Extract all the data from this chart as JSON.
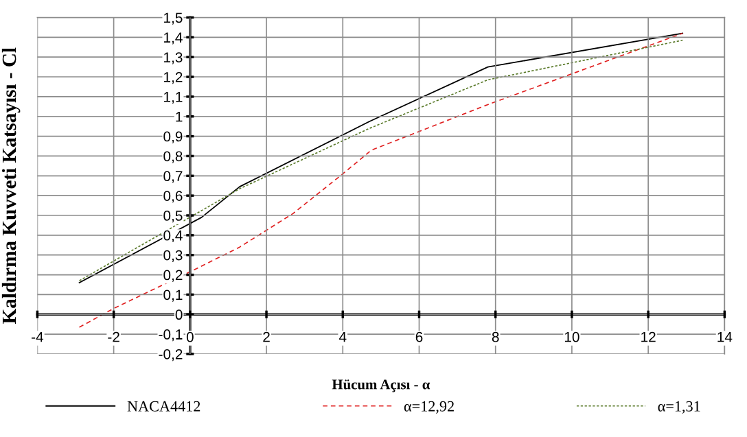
{
  "chart_data": {
    "type": "line",
    "xlabel": "Hücum Açısı - α",
    "ylabel": "Kaldırma Kuvveti Katsayısı - Cl",
    "xlim": [
      -4,
      14
    ],
    "xticks": [
      -4,
      -2,
      0,
      2,
      4,
      6,
      8,
      10,
      12,
      14
    ],
    "ylim": [
      -0.2,
      1.5
    ],
    "yticks": [
      {
        "value": -0.2,
        "label": "-0,2"
      },
      {
        "value": -0.1,
        "label": "-0,1"
      },
      {
        "value": 0,
        "label": "0"
      },
      {
        "value": 0.1,
        "label": "0,1"
      },
      {
        "value": 0.2,
        "label": "0,2"
      },
      {
        "value": 0.3,
        "label": "0,3"
      },
      {
        "value": 0.4,
        "label": "0,4"
      },
      {
        "value": 0.5,
        "label": "0,5"
      },
      {
        "value": 0.6,
        "label": "0,6"
      },
      {
        "value": 0.7,
        "label": "0,7"
      },
      {
        "value": 0.8,
        "label": "0,8"
      },
      {
        "value": 0.9,
        "label": "0,9"
      },
      {
        "value": 1,
        "label": "1"
      },
      {
        "value": 1.1,
        "label": "1,1"
      },
      {
        "value": 1.2,
        "label": "1,2"
      },
      {
        "value": 1.3,
        "label": "1,3"
      },
      {
        "value": 1.4,
        "label": "1,4"
      },
      {
        "value": 1.5,
        "label": "1,5"
      }
    ],
    "grid": true,
    "legend": "bottom",
    "marker": "none",
    "series": [
      {
        "name": "NACA4412",
        "color": "#000000",
        "line_style": "solid",
        "x": [
          -2.9,
          0.3,
          1.3,
          4.7,
          7.8,
          12.9
        ],
        "values": [
          0.16,
          0.49,
          0.645,
          0.975,
          1.25,
          1.42
        ]
      },
      {
        "name": "α=12,92",
        "color": "#e02020",
        "line_style": "dashed",
        "x": [
          -2.9,
          -2,
          0,
          1.3,
          2.7,
          4,
          4.75,
          7.8,
          12.9
        ],
        "values": [
          -0.065,
          0.03,
          0.215,
          0.34,
          0.51,
          0.71,
          0.83,
          1.06,
          1.42
        ]
      },
      {
        "name": "α=1,31",
        "color": "#5a7a2a",
        "line_style": "dotted",
        "x": [
          -2.9,
          1.3,
          4.7,
          7.8,
          12.9
        ],
        "values": [
          0.17,
          0.635,
          0.94,
          1.185,
          1.385
        ]
      }
    ]
  }
}
